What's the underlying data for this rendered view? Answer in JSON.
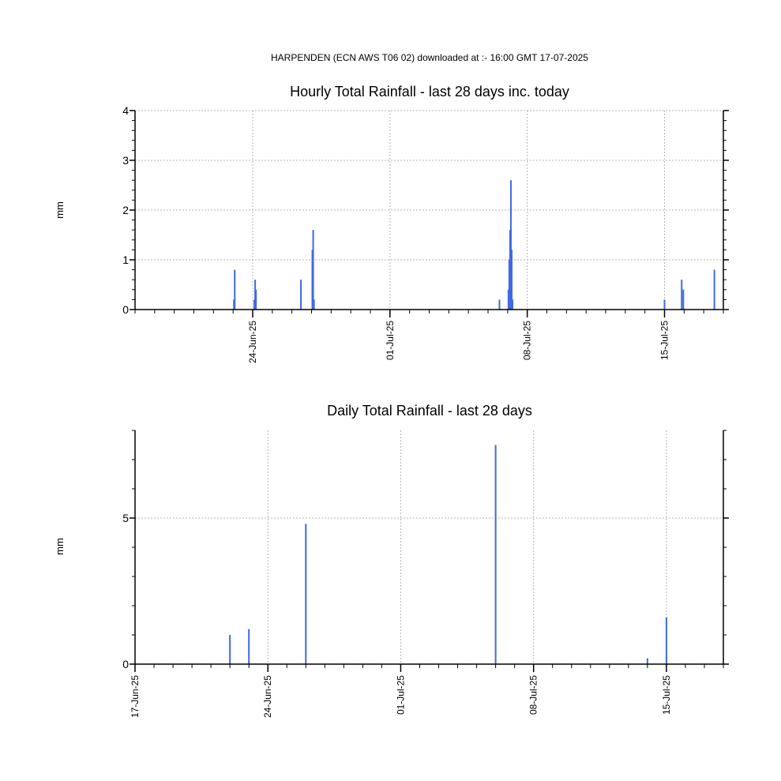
{
  "header": "HARPENDEN (ECN AWS T06 02) downloaded at :- 16:00 GMT 17-07-2025",
  "colors": {
    "bar": "#4169e1",
    "grid": "#b4b4b4",
    "axis": "#000000"
  },
  "chart_data": [
    {
      "type": "bar",
      "title": "Hourly Total Rainfall - last 28 days inc. today",
      "ylabel": "mm",
      "xlabel": "",
      "x_axis": "date",
      "xlim": [
        "2025-06-18T00:00",
        "2025-07-18T00:00"
      ],
      "ylim": [
        0,
        4
      ],
      "yticks": [
        0,
        1,
        2,
        3,
        4
      ],
      "xticks": [
        {
          "date": "2025-06-24",
          "label": "24-Jun-25"
        },
        {
          "date": "2025-07-01",
          "label": "01-Jul-25"
        },
        {
          "date": "2025-07-08",
          "label": "08-Jul-25"
        },
        {
          "date": "2025-07-15",
          "label": "15-Jul-25"
        }
      ],
      "grid": true,
      "series": [
        {
          "x": [
            "2025-06-23T01:00",
            "2025-06-23T02:00",
            "2025-06-24T02:00",
            "2025-06-24T03:00",
            "2025-06-24T04:00",
            "2025-06-26T11:00",
            "2025-06-27T01:00",
            "2025-06-27T02:00",
            "2025-06-27T03:00",
            "2025-07-06T14:00",
            "2025-07-07T01:00",
            "2025-07-07T02:00",
            "2025-07-07T03:00",
            "2025-07-07T04:00",
            "2025-07-07T05:00",
            "2025-07-07T06:00",
            "2025-07-15T00:00",
            "2025-07-15T21:00",
            "2025-07-15T23:00",
            "2025-07-17T13:00"
          ],
          "values": [
            0.2,
            0.8,
            0.2,
            0.6,
            0.4,
            0.6,
            1.2,
            1.6,
            0.2,
            0.2,
            0.4,
            1.0,
            1.6,
            2.6,
            1.2,
            0.2,
            0.2,
            0.6,
            0.4,
            0.8
          ]
        }
      ]
    },
    {
      "type": "bar",
      "title": "Daily Total Rainfall - last 28 days",
      "ylabel": "mm",
      "xlabel": "",
      "x_axis": "date",
      "xlim": [
        "2025-06-17",
        "2025-07-18"
      ],
      "ylim": [
        0,
        8
      ],
      "yticks": [
        0,
        5
      ],
      "xticks": [
        {
          "date": "2025-06-17",
          "label": "17-Jun-25"
        },
        {
          "date": "2025-06-24",
          "label": "24-Jun-25"
        },
        {
          "date": "2025-07-01",
          "label": "01-Jul-25"
        },
        {
          "date": "2025-07-08",
          "label": "08-Jul-25"
        },
        {
          "date": "2025-07-15",
          "label": "15-Jul-25"
        }
      ],
      "grid": true,
      "series": [
        {
          "x": [
            "2025-06-22",
            "2025-06-23",
            "2025-06-26",
            "2025-07-06",
            "2025-07-14",
            "2025-07-15"
          ],
          "values": [
            1.0,
            1.2,
            4.8,
            7.5,
            0.2,
            1.6
          ]
        }
      ]
    }
  ]
}
